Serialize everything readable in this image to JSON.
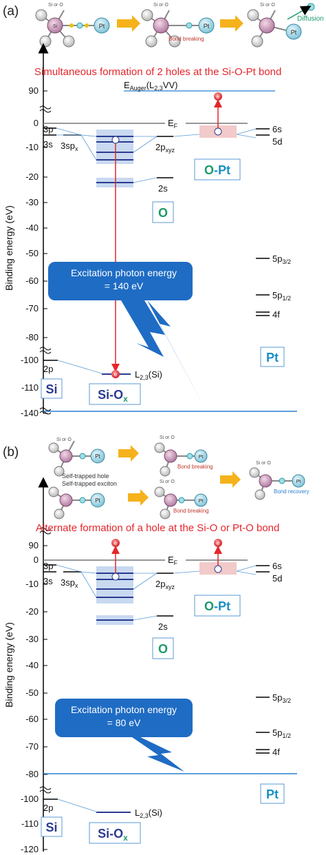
{
  "panel_a": {
    "label": "(a)",
    "headline": "Simultaneous formation of 2 holes at the Si-O-Pt bond",
    "schematic": {
      "site_label": "Si or O",
      "atom_si": "Si",
      "atom_o": "O",
      "atom_pt": "Pt",
      "bond_breaking": "Bond breaking",
      "diffusion": "Diffusion"
    },
    "y_ticks": [
      "90",
      "0",
      "-10",
      "-20",
      "-30",
      "-40",
      "-50",
      "-60",
      "-70",
      "-80",
      "-100",
      "-110",
      "-140"
    ],
    "auger_label": "E",
    "auger_sub": "Auger",
    "auger_rest": "(L",
    "auger_sub2": "2,3",
    "auger_end": "VV)",
    "ef_label": "E",
    "ef_sub": "F",
    "photon_line1": "Excitation photon energy",
    "photon_line2": "= 140 eV"
  },
  "panel_b": {
    "label": "(b)",
    "headline": "Alternate formation of a hole at the Si-O or Pt-O bond",
    "schematic": {
      "self_trapped_hole": "Self-trapped hole",
      "self_trapped_exciton": "Self-trapped exciton",
      "bond_breaking": "Bond breaking",
      "bond_recovery": "Bond recovery",
      "site_label": "Si or O"
    },
    "y_ticks": [
      "90",
      "0",
      "-10",
      "-20",
      "-30",
      "-40",
      "-50",
      "-60",
      "-70",
      "-80",
      "-100",
      "-110",
      "-120"
    ],
    "ef_label": "E",
    "ef_sub": "F",
    "photon_line1": "Excitation photon energy",
    "photon_line2": "= 80 eV"
  },
  "axis_title": "Binding energy (eV)",
  "levels": {
    "3p": "3p",
    "3s": "3s",
    "3spx": "3sp",
    "3spx_sub": "x",
    "2pxyz": "2p",
    "2pxyz_sub": "xyz",
    "2s": "2s",
    "6s": "6s",
    "5d": "5d",
    "5p32": "5p",
    "5p32_sub": "3/2",
    "5p12": "5p",
    "5p12_sub": "1/2",
    "4f": "4f",
    "2p": "2p",
    "l23": "L",
    "l23_sub": "2,3",
    "l23_rest": "(Si)"
  },
  "boxes": {
    "o_pt_o": "O",
    "o_pt_dash": "-",
    "o_pt_pt": "Pt",
    "o": "O",
    "pt": "Pt",
    "si": "Si",
    "siox_si": "Si-O",
    "siox_x": "x"
  },
  "colors": {
    "red": "#e4262b",
    "blue_line": "#2a7fd4",
    "dark_level": "#2b3a8f",
    "band_blue": "#c8d9f0",
    "band_pink": "#f2caca",
    "callout": "#1f6cc4",
    "green": "#1a9a6a",
    "cyan": "#1a8fc4",
    "arrow_orange": "#f5b21b"
  },
  "electron_symbol": "e"
}
